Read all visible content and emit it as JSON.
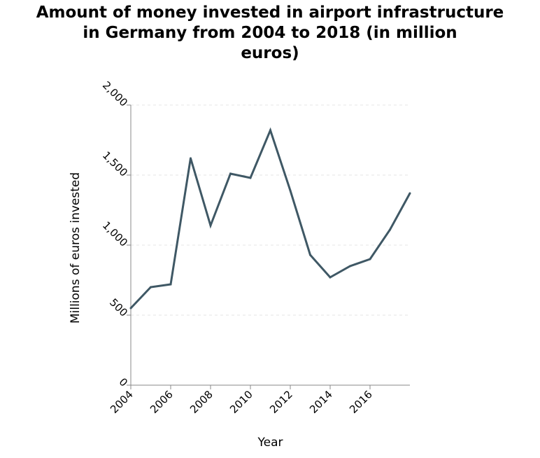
{
  "chart_data": {
    "type": "line",
    "title_lines": [
      "Amount of money invested in airport infrastructure",
      "in Germany from 2004 to 2018 (in million",
      "euros)"
    ],
    "xlabel": "Year",
    "ylabel": "Millions of euros invested",
    "x": [
      2004,
      2005,
      2006,
      2007,
      2008,
      2009,
      2010,
      2011,
      2012,
      2013,
      2014,
      2015,
      2016,
      2017,
      2018
    ],
    "y": [
      550,
      700,
      720,
      1620,
      1140,
      1510,
      1480,
      1820,
      1390,
      930,
      770,
      850,
      900,
      1110,
      1370
    ],
    "xlim": [
      2004,
      2018
    ],
    "ylim": [
      0,
      2000
    ],
    "x_ticks": [
      "2004",
      "2006",
      "2008",
      "2010",
      "2012",
      "2014",
      "2016"
    ],
    "y_ticks": [
      "0",
      "500",
      "1,000",
      "1,500",
      "2,000"
    ],
    "grid": "horizontal dashed",
    "line_color": "#3f5865",
    "grid_color": "#e6e6e6",
    "axis_color": "#888888"
  }
}
